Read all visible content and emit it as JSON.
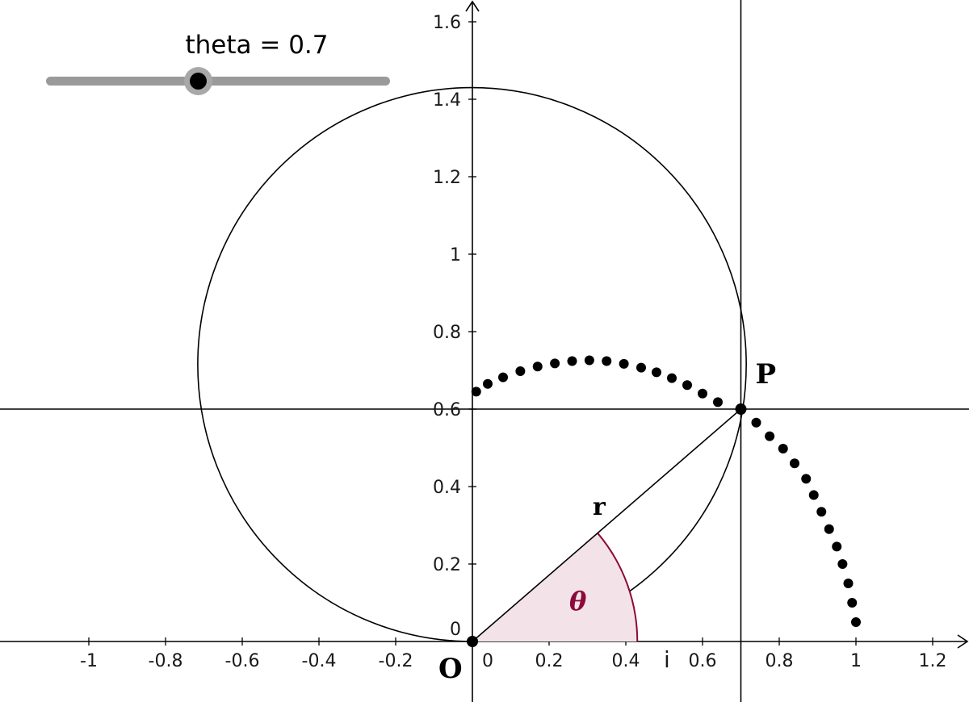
{
  "slider": {
    "label": "theta = 0.7",
    "name": "theta",
    "value": 0.7,
    "min": -1,
    "max": 1.5
  },
  "axes": {
    "x_ticks": [
      "-1",
      "-0.8",
      "-0.6",
      "-0.4",
      "-0.2",
      "0",
      "0.2",
      "0.4",
      "0.6",
      "0.8",
      "1",
      "1.2"
    ],
    "y_ticks": [
      "0",
      "0.2",
      "0.4",
      "0.6",
      "0.8",
      "1",
      "1.2",
      "1.4",
      "1.6"
    ],
    "x_range": [
      -1.2,
      1.3
    ],
    "y_range": [
      -0.15,
      1.65
    ]
  },
  "labels": {
    "origin": "O",
    "point": "P",
    "radius": "r",
    "angle": "θ",
    "unit": "i"
  },
  "colors": {
    "angle_fill": "#f3e3e8",
    "angle_stroke": "#8b0a3a",
    "axis": "#000000"
  },
  "geometry_data": {
    "P": [
      0.7,
      0.6
    ],
    "circle_center": [
      -0.001,
      0.715
    ],
    "circle_radius": 0.715,
    "vertical_line_x": 0.7,
    "horizontal_line_y": 0.6,
    "angle_radius": 0.43
  },
  "trace_points": [
    [
      0.01,
      0.645
    ],
    [
      0.04,
      0.665
    ],
    [
      0.08,
      0.682
    ],
    [
      0.125,
      0.698
    ],
    [
      0.17,
      0.71
    ],
    [
      0.215,
      0.718
    ],
    [
      0.26,
      0.724
    ],
    [
      0.305,
      0.726
    ],
    [
      0.35,
      0.724
    ],
    [
      0.395,
      0.717
    ],
    [
      0.44,
      0.707
    ],
    [
      0.48,
      0.695
    ],
    [
      0.52,
      0.68
    ],
    [
      0.56,
      0.662
    ],
    [
      0.6,
      0.64
    ],
    [
      0.64,
      0.618
    ],
    [
      0.74,
      0.565
    ],
    [
      0.775,
      0.53
    ],
    [
      0.81,
      0.498
    ],
    [
      0.84,
      0.46
    ],
    [
      0.87,
      0.42
    ],
    [
      0.89,
      0.378
    ],
    [
      0.91,
      0.335
    ],
    [
      0.93,
      0.29
    ],
    [
      0.95,
      0.245
    ],
    [
      0.965,
      0.2
    ],
    [
      0.98,
      0.15
    ],
    [
      0.99,
      0.1
    ],
    [
      1.0,
      0.05
    ]
  ]
}
